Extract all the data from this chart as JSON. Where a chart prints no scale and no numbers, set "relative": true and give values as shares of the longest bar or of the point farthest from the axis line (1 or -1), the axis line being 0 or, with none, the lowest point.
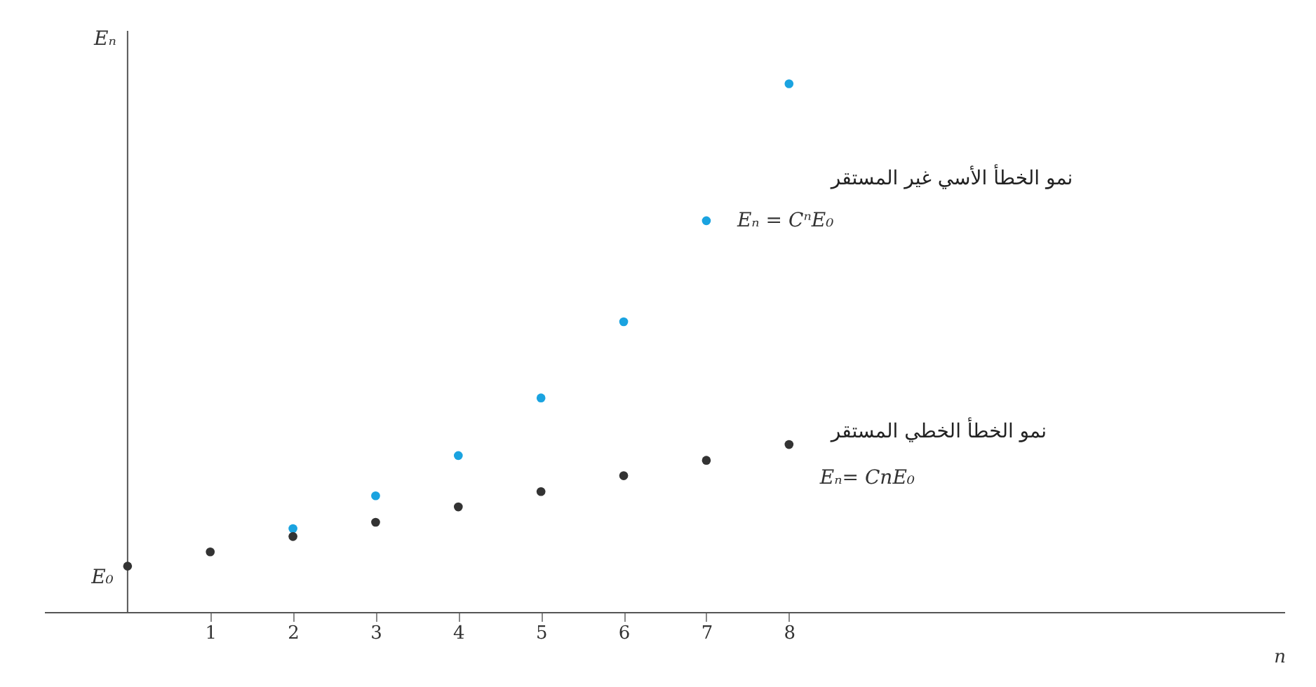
{
  "chart_data": {
    "type": "scatter",
    "relative": true,
    "xlabel": "n",
    "ylabel": "Eₙ",
    "xlim": [
      -1,
      14
    ],
    "xticks": [
      1,
      2,
      3,
      4,
      5,
      6,
      7,
      8
    ],
    "grid": false,
    "marker": "circle",
    "series": [
      {
        "name": "نمو الخطأ الأسي غير المستقر",
        "color": "#1aa3e0",
        "x": [
          2,
          3,
          4,
          5,
          6,
          7,
          8
        ],
        "values": [
          0.159,
          0.221,
          0.297,
          0.406,
          0.55,
          0.741,
          1
        ]
      },
      {
        "name": "نمو الخطأ الخطي المستقر",
        "color": "#333333",
        "x": [
          0,
          1,
          2,
          3,
          4,
          5,
          6,
          7,
          8
        ],
        "values": [
          0.088,
          0.115,
          0.144,
          0.171,
          0.2,
          0.229,
          0.259,
          0.288,
          0.318
        ]
      }
    ],
    "annotations": [
      {
        "text": "Eₙ = CⁿE₀",
        "x": 7,
        "y": 0.741
      },
      {
        "text": "Eₙ= CnE₀",
        "x": 8,
        "y": 0.318
      },
      {
        "text": "E₀",
        "x": 0,
        "y": 0.088
      }
    ]
  }
}
